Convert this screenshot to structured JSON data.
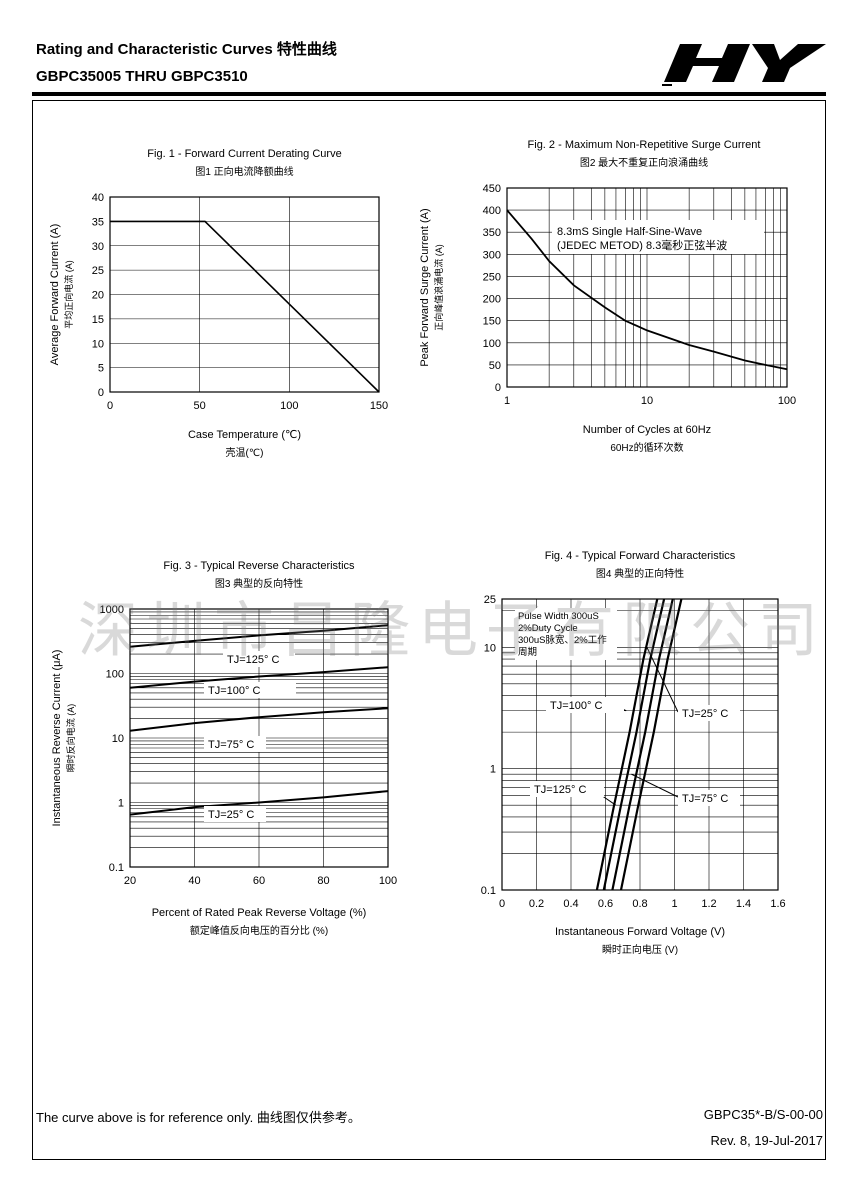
{
  "header": {
    "title": "Rating and Characteristic Curves 特性曲线",
    "subtitle": "GBPC35005 THRU GBPC3510",
    "logo_text": "HY"
  },
  "watermark": "深圳市昌隆电子有限公司",
  "footer": {
    "note": "The curve above is for reference only.  曲线图仅供参考。",
    "doc_id": "GBPC35*-B/S-00-00",
    "revision": "Rev. 8, 19-Jul-2017"
  },
  "chart_data": [
    {
      "id": "fig1",
      "type": "line",
      "title": "Fig. 1 - Forward Current Derating Curve",
      "subtitle": "图1 正向电流降额曲线",
      "xlabel": "Case Temperature (℃)",
      "xlabel_cn": "壳温(℃)",
      "ylabel": "Average Forward Current (A)",
      "ylabel_cn": "平均正向电流 (A)",
      "xlim": [
        0,
        150
      ],
      "ylim": [
        0,
        40
      ],
      "x_ticks": [
        "0",
        "50",
        "100",
        "150"
      ],
      "y_ticks": [
        "0",
        "5",
        "10",
        "15",
        "20",
        "25",
        "30",
        "35",
        "40"
      ],
      "grid": true,
      "series": [
        {
          "x": [
            0,
            53,
            150
          ],
          "y": [
            35,
            35,
            0
          ]
        }
      ]
    },
    {
      "id": "fig2",
      "type": "line",
      "title": "Fig. 2 - Maximum Non-Repetitive Surge Current",
      "subtitle": "图2 最大不重复正向浪涌曲线",
      "xlabel": "Number of Cycles at 60Hz",
      "xlabel_cn": "60Hz的循环次数",
      "ylabel": "Peak Forward Surge Current (A)",
      "ylabel_cn": "正向峰值浪涌电流 (A)",
      "xscale": "log",
      "xlim": [
        1,
        100
      ],
      "ylim": [
        0,
        450
      ],
      "x_ticks": [
        "1",
        "10",
        "100"
      ],
      "y_ticks": [
        "0",
        "50",
        "100",
        "150",
        "200",
        "250",
        "300",
        "350",
        "400",
        "450"
      ],
      "grid": true,
      "annotation": [
        "8.3mS Single Half-Sine-Wave",
        "(JEDEC METOD) 8.3毫秒正弦半波"
      ],
      "series": [
        {
          "x": [
            1,
            1.5,
            2,
            3,
            5,
            7,
            10,
            20,
            30,
            50,
            70,
            100
          ],
          "y": [
            400,
            335,
            285,
            230,
            180,
            150,
            128,
            95,
            80,
            60,
            50,
            40
          ]
        }
      ]
    },
    {
      "id": "fig3",
      "type": "line",
      "title": "Fig. 3 - Typical Reverse Characteristics",
      "subtitle": "图3 典型的反向特性",
      "xlabel": "Percent of Rated Peak Reverse Voltage (%)",
      "xlabel_cn": "额定峰值反向电压的百分比 (%)",
      "ylabel": "Instantaneous Reverse Current (μA)",
      "ylabel_cn": "瞬时反向电流 (A)",
      "yscale": "log",
      "xlim": [
        20,
        100
      ],
      "ylim": [
        0.1,
        1000
      ],
      "x_ticks": [
        "20",
        "40",
        "60",
        "80",
        "100"
      ],
      "y_ticks": [
        "0.1",
        "1",
        "10",
        "100",
        "1000"
      ],
      "grid": true,
      "series": [
        {
          "name": "TJ=125° C",
          "x": [
            20,
            40,
            60,
            80,
            100
          ],
          "y": [
            260,
            320,
            390,
            460,
            560
          ]
        },
        {
          "name": "TJ=100° C",
          "x": [
            20,
            40,
            60,
            80,
            100
          ],
          "y": [
            60,
            75,
            90,
            105,
            125
          ]
        },
        {
          "name": "TJ=75° C",
          "x": [
            20,
            40,
            60,
            80,
            100
          ],
          "y": [
            13,
            17,
            21,
            25,
            29
          ]
        },
        {
          "name": "TJ=25° C",
          "x": [
            20,
            40,
            60,
            80,
            100
          ],
          "y": [
            0.65,
            0.85,
            1.0,
            1.2,
            1.5
          ]
        }
      ]
    },
    {
      "id": "fig4",
      "type": "line",
      "title": "Fig. 4 - Typical Forward Characteristics",
      "subtitle": "图4 典型的正向特性",
      "xlabel": "Instantaneous Forward Voltage (V)",
      "xlabel_cn": "瞬时正向电压 (V)",
      "yscale": "log",
      "xlim": [
        0,
        1.6
      ],
      "ylim": [
        0.1,
        25
      ],
      "x_ticks": [
        "0",
        "0.2",
        "0.4",
        "0.6",
        "0.8",
        "1",
        "1.2",
        "1.4",
        "1.6"
      ],
      "y_ticks": [
        "0.1",
        "1",
        "10",
        "25"
      ],
      "grid": true,
      "annotation": [
        "Pulse Width 300uS",
        "2%Duty Cycle",
        "300uS脉宽、2%工作",
        "周期"
      ],
      "series": [
        {
          "name": "TJ=125° C",
          "x": [
            0.55,
            0.65,
            0.74,
            0.82,
            0.9
          ],
          "y": [
            0.1,
            0.5,
            2.0,
            8.0,
            25
          ]
        },
        {
          "name": "TJ=100° C",
          "x": [
            0.59,
            0.69,
            0.78,
            0.86,
            0.94
          ],
          "y": [
            0.1,
            0.5,
            2.0,
            8.0,
            25
          ]
        },
        {
          "name": "TJ=75° C",
          "x": [
            0.64,
            0.74,
            0.83,
            0.91,
            0.99
          ],
          "y": [
            0.1,
            0.5,
            2.0,
            8.0,
            25
          ]
        },
        {
          "name": "TJ=25° C",
          "x": [
            0.69,
            0.79,
            0.88,
            0.96,
            1.04
          ],
          "y": [
            0.1,
            0.5,
            2.0,
            8.0,
            25
          ]
        }
      ]
    }
  ]
}
